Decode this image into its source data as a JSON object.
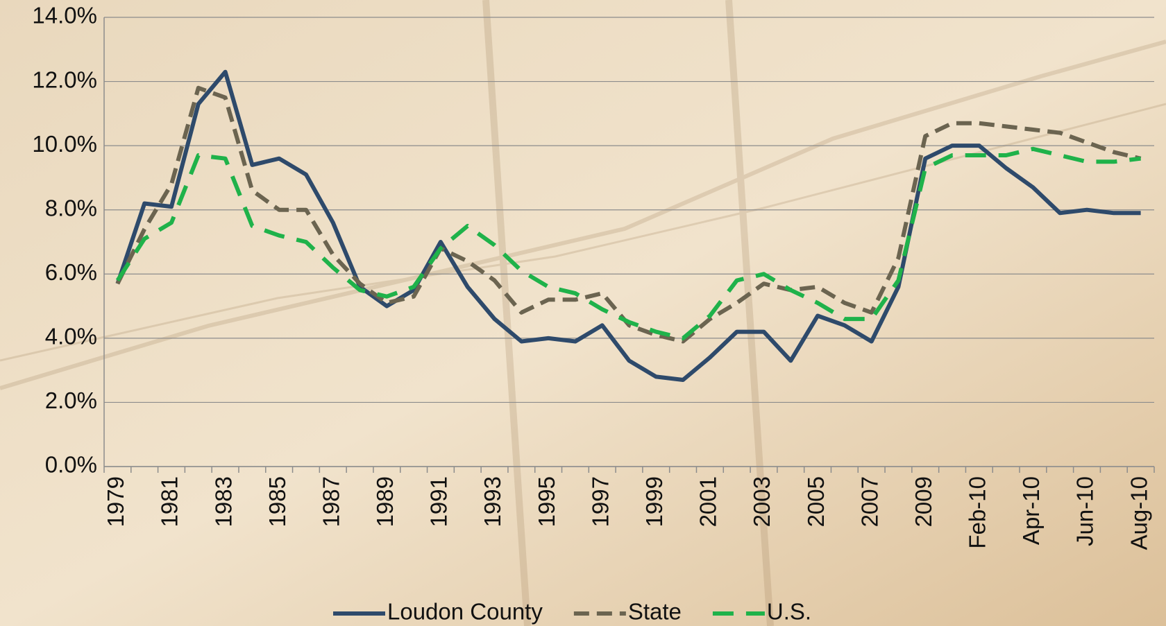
{
  "chart_data": {
    "type": "line",
    "categories": [
      "1979",
      null,
      "1981",
      null,
      "1983",
      null,
      "1985",
      null,
      "1987",
      null,
      "1989",
      null,
      "1991",
      null,
      "1993",
      null,
      "1995",
      null,
      "1997",
      null,
      "1999",
      null,
      "2001",
      null,
      "2003",
      null,
      "2005",
      null,
      "2007",
      null,
      "2009",
      null,
      "Feb-10",
      null,
      "Apr-10",
      null,
      "Jun-10",
      null,
      "Aug-10"
    ],
    "series": [
      {
        "name": "Loudon County",
        "color": "#2e4a6b",
        "dash": "solid",
        "values": [
          5.7,
          8.2,
          8.1,
          11.3,
          12.3,
          9.4,
          9.6,
          9.1,
          7.6,
          5.6,
          5.0,
          5.5,
          7.0,
          5.6,
          4.6,
          3.9,
          4.0,
          3.9,
          4.4,
          3.3,
          2.8,
          2.7,
          3.4,
          4.2,
          4.2,
          3.3,
          4.7,
          4.4,
          3.9,
          5.6,
          9.6,
          10.0,
          10.0,
          9.3,
          8.7,
          7.9,
          8.0,
          7.9,
          7.9
        ]
      },
      {
        "name": "State",
        "color": "#6b6450",
        "dash": "dashed",
        "values": [
          5.7,
          7.4,
          8.8,
          11.8,
          11.5,
          8.6,
          8.0,
          8.0,
          6.6,
          5.7,
          5.1,
          5.3,
          6.8,
          6.4,
          5.8,
          4.8,
          5.2,
          5.2,
          5.4,
          4.4,
          4.1,
          3.9,
          4.6,
          5.1,
          5.7,
          5.5,
          5.6,
          5.1,
          4.8,
          6.5,
          10.3,
          10.7,
          10.7,
          10.6,
          10.5,
          10.4,
          10.1,
          9.8,
          9.6
        ]
      },
      {
        "name": "U.S.",
        "color": "#1fb24a",
        "dash": "long-dashed",
        "values": [
          5.8,
          7.1,
          7.6,
          9.7,
          9.6,
          7.5,
          7.2,
          7.0,
          6.2,
          5.5,
          5.3,
          5.6,
          6.8,
          7.5,
          6.9,
          6.1,
          5.6,
          5.4,
          4.9,
          4.5,
          4.2,
          4.0,
          4.7,
          5.8,
          6.0,
          5.5,
          5.1,
          4.6,
          4.6,
          5.8,
          9.3,
          9.7,
          9.7,
          9.7,
          9.9,
          9.7,
          9.5,
          9.5,
          9.6
        ]
      }
    ],
    "ylim": [
      0,
      14
    ],
    "yticks": [
      {
        "value": 0,
        "label": "0.0%"
      },
      {
        "value": 2,
        "label": "2.0%"
      },
      {
        "value": 4,
        "label": "4.0%"
      },
      {
        "value": 6,
        "label": "6.0%"
      },
      {
        "value": 8,
        "label": "8.0%"
      },
      {
        "value": 10,
        "label": "10.0%"
      },
      {
        "value": 12,
        "label": "12.0%"
      },
      {
        "value": 14,
        "label": "14.0%"
      }
    ],
    "grid": true,
    "legend": "bottom"
  }
}
